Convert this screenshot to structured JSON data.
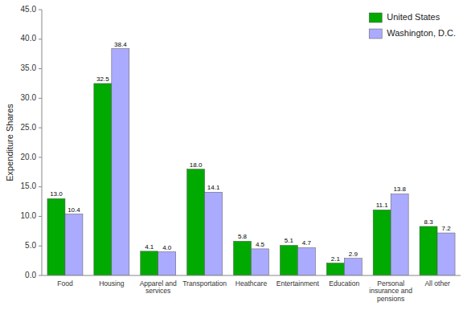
{
  "chart_data": {
    "type": "bar",
    "categories": [
      "Food",
      "Housing",
      "Apparel and\nservices",
      "Transportation",
      "Heathcare",
      "Entertainment",
      "Education",
      "Personal\ninsurance and\npensions",
      "All other"
    ],
    "series": [
      {
        "name": "United States",
        "color": "#00aa00",
        "values": [
          13.0,
          32.5,
          4.1,
          18.0,
          5.8,
          5.1,
          2.1,
          11.1,
          8.3
        ],
        "value_labels": [
          "13.0",
          "32.5",
          "4.1",
          "18.0",
          "5.8",
          "5.1",
          "2.1",
          "11.1",
          "8.3"
        ]
      },
      {
        "name": "Washington, D.C.",
        "color": "#aaaaff",
        "values": [
          10.4,
          38.4,
          4.0,
          14.1,
          4.5,
          4.7,
          2.9,
          13.8,
          7.2
        ],
        "value_labels": [
          "10.4",
          "38.4",
          "4.0",
          "14.1",
          "4.5",
          "4.7",
          "2.9",
          "13.8",
          "7.2"
        ]
      }
    ],
    "ylabel": "Expenditure Shares",
    "ylim": [
      0,
      45
    ],
    "yticks": [
      {
        "value": 0,
        "label": "0.0"
      },
      {
        "value": 5,
        "label": "5.0"
      },
      {
        "value": 10,
        "label": "10.0"
      },
      {
        "value": 15,
        "label": "15.0"
      },
      {
        "value": 20,
        "label": "20.0"
      },
      {
        "value": 25,
        "label": "25.0"
      },
      {
        "value": 30,
        "label": "30.0"
      },
      {
        "value": 35,
        "label": "35.0"
      },
      {
        "value": 40,
        "label": "40.0"
      },
      {
        "value": 45,
        "label": "45.0"
      }
    ],
    "data_labels": true,
    "legend": "upper right",
    "grid": false
  }
}
